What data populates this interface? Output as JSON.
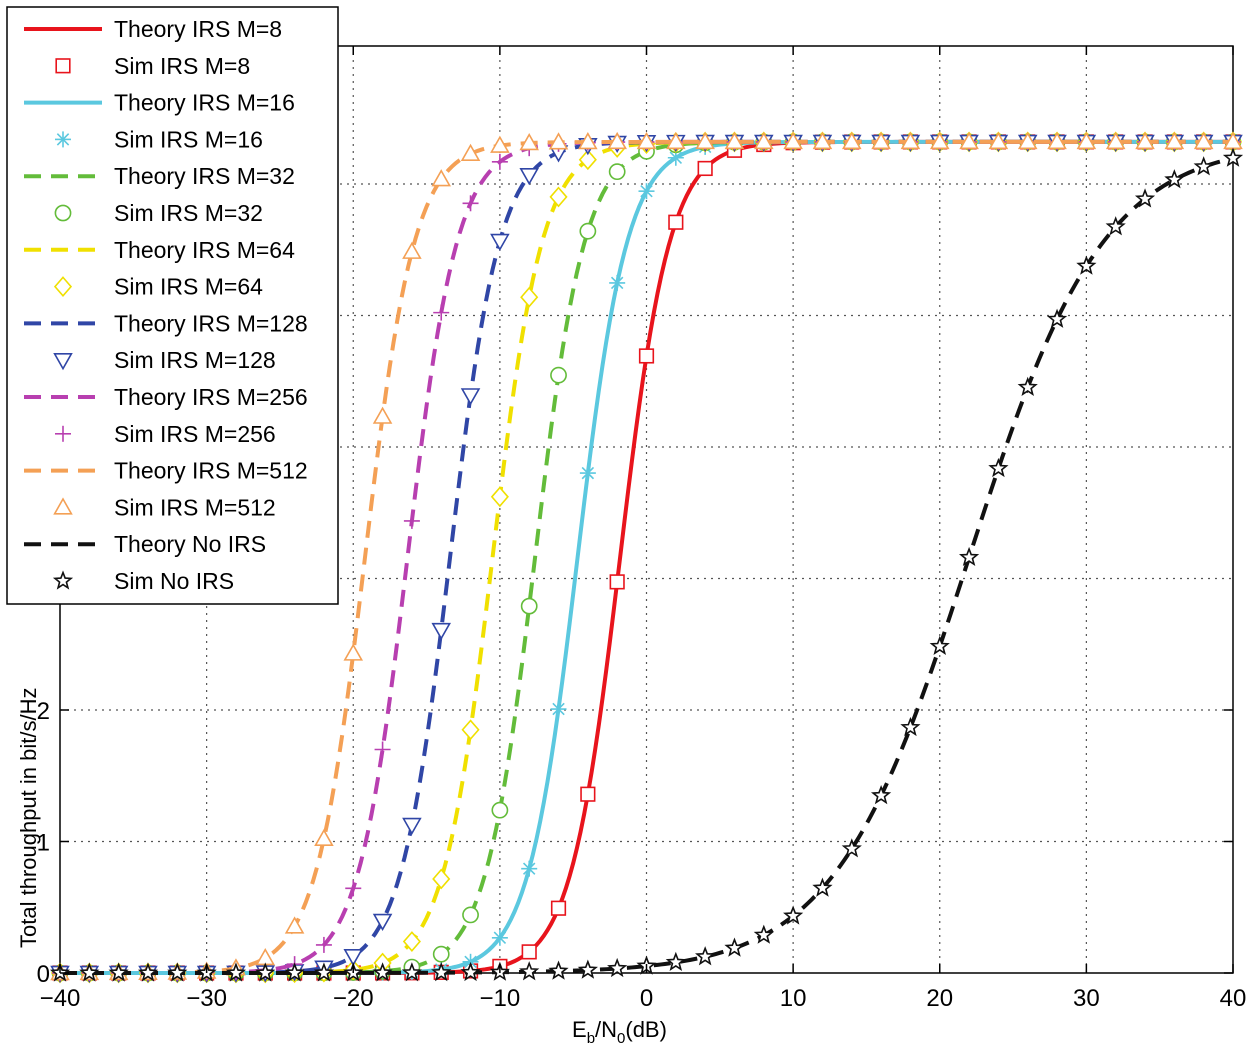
{
  "chart_data": {
    "type": "line",
    "title": "",
    "xlabel_main": "E",
    "xlabel_sub1": "b",
    "xlabel_mid": "/N",
    "xlabel_sub2": "0",
    "xlabel_unit": "(dB)",
    "ylabel": "Total throughput in bit/s/Hz",
    "xlim": [
      -40,
      40
    ],
    "ylim": [
      0,
      7
    ],
    "xticks": [
      -40,
      -30,
      -20,
      -10,
      0,
      10,
      20,
      30,
      40
    ],
    "yticks": [
      0,
      1,
      2
    ],
    "grid": true,
    "legend_position": "top-left",
    "x_sim": [
      -40,
      -38,
      -36,
      -34,
      -32,
      -30,
      -28,
      -26,
      -24,
      -22,
      -20,
      -18,
      -16,
      -14,
      -12,
      -10,
      -8,
      -6,
      -4,
      -2,
      0,
      2,
      4,
      6,
      8,
      10,
      12,
      14,
      16,
      18,
      20,
      22,
      24,
      26,
      28,
      30,
      32,
      34,
      36,
      38,
      40
    ],
    "series": [
      {
        "name": "M=8",
        "theory_label": "Theory IRS M=8",
        "sim_label": "Sim IRS M=8",
        "color": "#e8141c",
        "dash": "solid",
        "marker": "square",
        "sat": 6.32,
        "center": -1.8,
        "width": 1.7
      },
      {
        "name": "M=16",
        "theory_label": "Theory IRS M=16",
        "sim_label": "Sim IRS M=16",
        "color": "#5bc8df",
        "dash": "solid",
        "marker": "asterisk",
        "sat": 6.32,
        "center": -4.7,
        "width": 1.7
      },
      {
        "name": "M=32",
        "theory_label": "Theory IRS M=32",
        "sim_label": "Sim IRS M=32",
        "color": "#63bc3a",
        "dash": "dashed",
        "marker": "circle",
        "sat": 6.32,
        "center": -7.6,
        "width": 1.7
      },
      {
        "name": "M=64",
        "theory_label": "Theory IRS M=64",
        "sim_label": "Sim IRS M=64",
        "color": "#f0e000",
        "dash": "dashed",
        "marker": "diamond",
        "sat": 6.32,
        "center": -10.5,
        "width": 1.7
      },
      {
        "name": "M=128",
        "theory_label": "Theory IRS M=128",
        "sim_label": "Sim IRS M=128",
        "color": "#3046a6",
        "dash": "dashed",
        "marker": "triangle-down",
        "sat": 6.32,
        "center": -13.4,
        "width": 1.7
      },
      {
        "name": "M=256",
        "theory_label": "Theory IRS M=256",
        "sim_label": "Sim IRS M=256",
        "color": "#b83fb0",
        "dash": "dashed",
        "marker": "plus",
        "sat": 6.32,
        "center": -16.3,
        "width": 1.7
      },
      {
        "name": "M=512",
        "theory_label": "Theory IRS M=512",
        "sim_label": "Sim IRS M=512",
        "color": "#f4a055",
        "dash": "dashed",
        "marker": "triangle-up",
        "sat": 6.32,
        "center": -19.2,
        "width": 1.7
      },
      {
        "name": "No IRS",
        "theory_label": "Theory No IRS",
        "sim_label": "Sim No IRS",
        "color": "#111111",
        "dash": "dashed",
        "marker": "star",
        "sat": 6.32,
        "center": 22.0,
        "width": 4.6
      }
    ]
  }
}
